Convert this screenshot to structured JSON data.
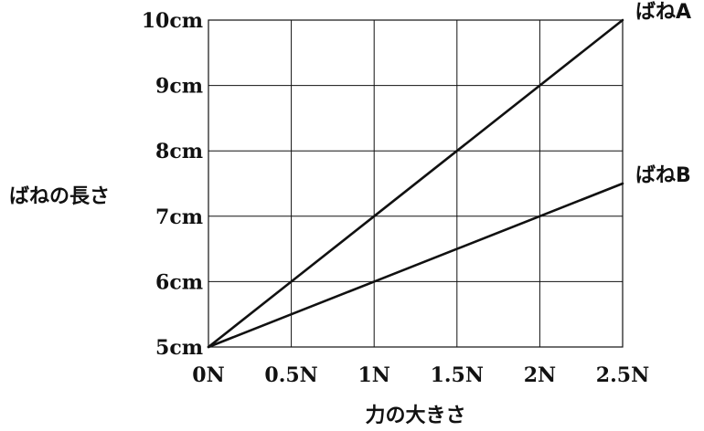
{
  "chart_data": {
    "type": "line",
    "x": [
      0,
      0.5,
      1,
      1.5,
      2,
      2.5
    ],
    "x_tick_labels": [
      "0N",
      "0.5N",
      "1N",
      "1.5N",
      "2N",
      "2.5N"
    ],
    "y_ticks": [
      5,
      6,
      7,
      8,
      9,
      10
    ],
    "y_tick_labels": [
      "5cm",
      "6cm",
      "7cm",
      "8cm",
      "9cm",
      "10cm"
    ],
    "xlim": [
      0,
      2.5
    ],
    "ylim": [
      5,
      10
    ],
    "xlabel": "力の大きさ",
    "ylabel": "ばねの長さ",
    "grid": true,
    "series": [
      {
        "name": "ばねA",
        "values": [
          5,
          6,
          7,
          8,
          9,
          10
        ]
      },
      {
        "name": "ばねB",
        "values": [
          5,
          5.5,
          6,
          6.5,
          7,
          7.5
        ]
      }
    ]
  }
}
